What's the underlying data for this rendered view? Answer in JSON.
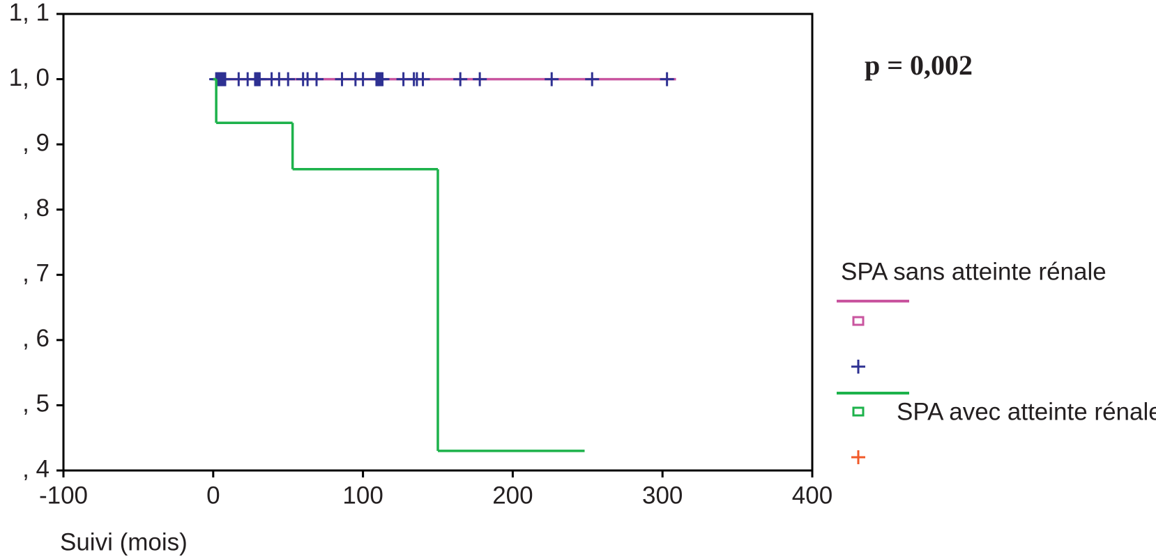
{
  "chart_data": {
    "type": "line",
    "step": true,
    "x_label": "Suivi (mois)",
    "annotation": "p = 0,002",
    "xlim": [
      -100,
      400
    ],
    "xticks": [
      -100,
      0,
      100,
      200,
      300,
      400
    ],
    "ylim": [
      0.4,
      1.1
    ],
    "yticks": [
      {
        "value": 0.4,
        "label": ", 4"
      },
      {
        "value": 0.5,
        "label": ", 5"
      },
      {
        "value": 0.6,
        "label": ", 6"
      },
      {
        "value": 0.7,
        "label": ", 7"
      },
      {
        "value": 0.8,
        "label": ", 8"
      },
      {
        "value": 0.9,
        "label": ", 9"
      },
      {
        "value": 1.0,
        "label": "1, 0"
      },
      {
        "value": 1.1,
        "label": "1, 1"
      }
    ],
    "series": [
      {
        "name": "SPA sans atteinte rénale",
        "color": "#c9559f",
        "censor_color": "#2e3192",
        "x": [
          0,
          309
        ],
        "values": [
          1.0,
          1.0
        ],
        "censored": [
          2,
          3,
          4,
          5,
          6,
          7,
          8,
          17,
          23,
          28,
          29,
          30,
          31,
          39,
          44,
          50,
          60,
          63,
          69,
          86,
          95,
          100,
          109,
          110,
          111,
          112,
          113,
          127,
          134,
          136,
          140,
          165,
          178,
          226,
          253,
          303
        ]
      },
      {
        "name": "SPA avec atteinte rénale",
        "color": "#1db24b",
        "censor_color": "#f15a29",
        "x": [
          0,
          2,
          53,
          150,
          248
        ],
        "values": [
          1.0,
          0.933,
          0.862,
          0.43,
          0.43
        ],
        "censored": []
      }
    ]
  }
}
